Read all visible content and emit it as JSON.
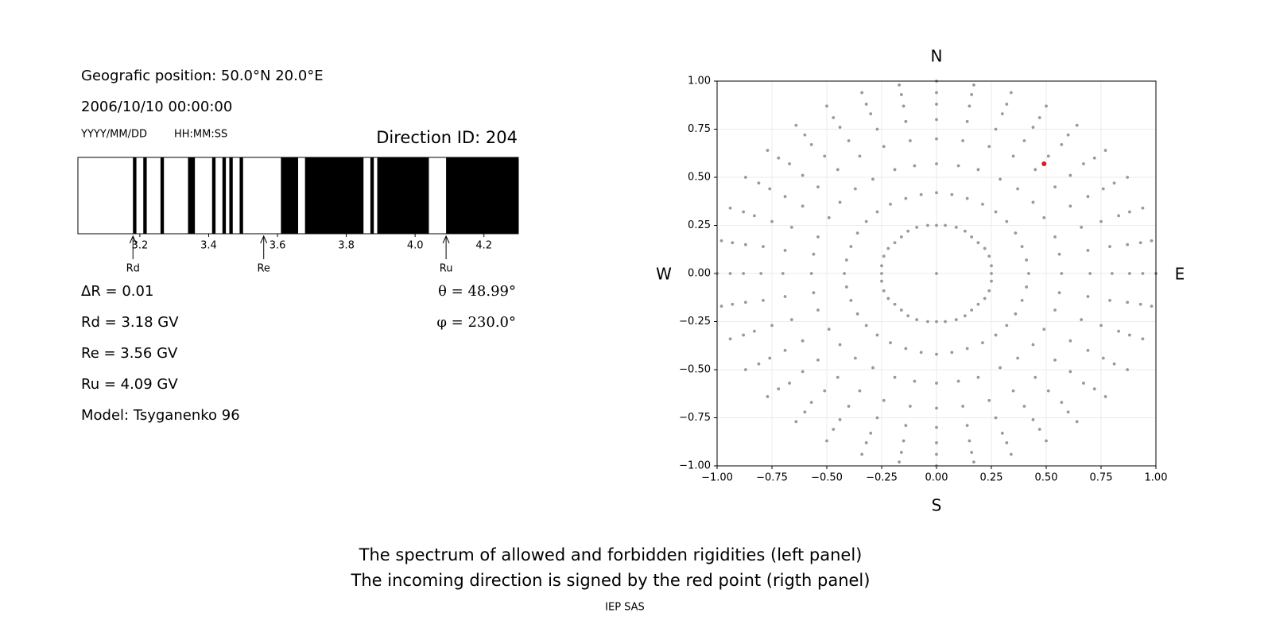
{
  "info": {
    "position": "Geografic position: 50.0°N 20.0°E",
    "datetime": "2006/10/10 00:00:00",
    "date_format": "YYYY/MM/DD",
    "time_format": "HH:MM:SS",
    "direction_id": "Direction ID: 204",
    "delta_r": "ΔR = 0.01",
    "rd": "Rd = 3.18 GV",
    "re": "Re = 3.56 GV",
    "ru": "Ru = 4.09 GV",
    "model": "Model: Tsyganenko 96",
    "theta": "θ = 48.99°",
    "phi": "φ = 230.0°"
  },
  "chart_data": [
    {
      "type": "spectrum",
      "color": "#000000",
      "bands": [
        [
          3.18,
          3.19
        ],
        [
          3.21,
          3.22
        ],
        [
          3.26,
          3.27
        ],
        [
          3.34,
          3.36
        ],
        [
          3.41,
          3.42
        ],
        [
          3.44,
          3.45
        ],
        [
          3.46,
          3.47
        ],
        [
          3.49,
          3.5
        ],
        [
          3.61,
          3.66
        ],
        [
          3.68,
          3.85
        ],
        [
          3.87,
          3.88
        ],
        [
          3.89,
          4.04
        ],
        [
          4.09,
          4.3
        ]
      ],
      "xlim": [
        3.02,
        4.3
      ],
      "xticks": [
        3.2,
        3.4,
        3.6,
        3.8,
        {
          "value": 4,
          "label": "4.0"
        },
        4.2
      ],
      "markers": [
        {
          "label": "Rd",
          "value": 3.18
        },
        {
          "label": "Re",
          "value": 3.56
        },
        {
          "label": "Ru",
          "value": 4.09
        }
      ]
    },
    {
      "type": "scatter",
      "grid": true,
      "directions": {
        "top": "N",
        "bottom": "S",
        "left": "W",
        "right": "E"
      },
      "xlim": [
        -1,
        1
      ],
      "ylim": [
        -1,
        1
      ],
      "xticks": [
        {
          "value": -1,
          "label": "−1.00"
        },
        {
          "value": -0.75,
          "label": "−0.75"
        },
        {
          "value": -0.5,
          "label": "−0.50"
        },
        {
          "value": -0.25,
          "label": "−0.25"
        },
        {
          "value": 0,
          "label": "0.00"
        },
        {
          "value": 0.25,
          "label": "0.25"
        },
        {
          "value": 0.5,
          "label": "0.50"
        },
        {
          "value": 0.75,
          "label": "0.75"
        },
        {
          "value": 1,
          "label": "1.00"
        }
      ],
      "yticks": [
        {
          "value": -1,
          "label": "−1.00"
        },
        {
          "value": -0.75,
          "label": "−0.75"
        },
        {
          "value": -0.5,
          "label": "−0.50"
        },
        {
          "value": -0.25,
          "label": "−0.25"
        },
        {
          "value": 0,
          "label": "0.00"
        },
        {
          "value": 0.25,
          "label": "0.25"
        },
        {
          "value": 0.5,
          "label": "0.50"
        },
        {
          "value": 0.75,
          "label": "0.75"
        },
        {
          "value": 1,
          "label": "1.00"
        }
      ],
      "series": [
        {
          "color": "#999999",
          "x": [
            0,
            0.25,
            0.25,
            0.24,
            0.22,
            0.19,
            0.16,
            0.13,
            0.09,
            0.04,
            0,
            -0.04,
            -0.09,
            -0.13,
            -0.16,
            -0.19,
            -0.22,
            -0.24,
            -0.25,
            -0.25,
            -0.25,
            -0.24,
            -0.22,
            -0.19,
            -0.16,
            -0.13,
            -0.09,
            -0.04,
            0,
            0.04,
            0.09,
            0.13,
            0.16,
            0.19,
            0.22,
            0.24,
            0.25,
            0.42,
            0.41,
            0.39,
            0.36,
            0.32,
            0.27,
            0.21,
            0.14,
            0.07,
            0,
            -0.07,
            -0.14,
            -0.21,
            -0.27,
            -0.32,
            -0.36,
            -0.39,
            -0.41,
            -0.42,
            -0.41,
            -0.39,
            -0.36,
            -0.32,
            -0.27,
            -0.21,
            -0.14,
            -0.07,
            0,
            0.07,
            0.14,
            0.21,
            0.27,
            0.32,
            0.36,
            0.39,
            0.41,
            0.57,
            0.56,
            0.54,
            0.49,
            0.44,
            0.37,
            0.29,
            0.19,
            0.1,
            0,
            -0.1,
            -0.19,
            -0.29,
            -0.37,
            -0.44,
            -0.49,
            -0.54,
            -0.56,
            -0.57,
            -0.56,
            -0.54,
            -0.49,
            -0.44,
            -0.37,
            -0.29,
            -0.19,
            -0.1,
            0,
            0.1,
            0.19,
            0.29,
            0.37,
            0.44,
            0.49,
            0.54,
            0.56,
            0.7,
            0.69,
            0.66,
            0.61,
            0.54,
            0.45,
            0.35,
            0.24,
            0.12,
            0,
            -0.12,
            -0.24,
            -0.35,
            -0.45,
            -0.54,
            -0.61,
            -0.66,
            -0.69,
            -0.7,
            -0.69,
            -0.66,
            -0.61,
            -0.54,
            -0.45,
            -0.35,
            -0.24,
            -0.12,
            0,
            0.12,
            0.24,
            0.35,
            0.45,
            0.54,
            0.61,
            0.66,
            0.69,
            0.8,
            0.79,
            0.75,
            0.69,
            0.61,
            0.51,
            0.4,
            0.27,
            0.14,
            0,
            -0.14,
            -0.27,
            -0.4,
            -0.51,
            -0.61,
            -0.69,
            -0.75,
            -0.79,
            -0.8,
            -0.79,
            -0.75,
            -0.69,
            -0.61,
            -0.51,
            -0.4,
            -0.27,
            -0.14,
            0,
            0.14,
            0.27,
            0.4,
            0.51,
            0.61,
            0.69,
            0.75,
            0.79,
            0.88,
            0.87,
            0.83,
            0.76,
            0.67,
            0.57,
            0.44,
            0.3,
            0.15,
            0,
            -0.15,
            -0.3,
            -0.44,
            -0.57,
            -0.67,
            -0.76,
            -0.83,
            -0.87,
            -0.88,
            -0.87,
            -0.83,
            -0.76,
            -0.67,
            -0.57,
            -0.44,
            -0.3,
            -0.15,
            0,
            0.15,
            0.3,
            0.44,
            0.57,
            0.67,
            0.76,
            0.83,
            0.87,
            0.94,
            0.93,
            0.88,
            0.81,
            0.72,
            0.6,
            0.47,
            0.32,
            0.16,
            0,
            -0.16,
            -0.32,
            -0.47,
            -0.6,
            -0.72,
            -0.81,
            -0.88,
            -0.93,
            -0.94,
            -0.93,
            -0.88,
            -0.81,
            -0.72,
            -0.6,
            -0.47,
            -0.32,
            -0.16,
            0,
            0.16,
            0.32,
            0.47,
            0.6,
            0.72,
            0.81,
            0.88,
            0.93,
            1,
            0.98,
            0.94,
            0.87,
            0.77,
            0.64,
            0.5,
            0.34,
            0.17,
            0,
            -0.17,
            -0.34,
            -0.5,
            -0.64,
            -0.77,
            -0.87,
            -0.94,
            -0.98,
            -1,
            -0.98,
            -0.94,
            -0.87,
            -0.77,
            -0.64,
            -0.5,
            -0.34,
            -0.17,
            0,
            0.17,
            0.34,
            0.5,
            0.64,
            0.77,
            0.87,
            0.94,
            0.98
          ],
          "y": [
            0,
            0,
            0.04,
            0.09,
            0.13,
            0.16,
            0.19,
            0.22,
            0.24,
            0.25,
            0.25,
            0.25,
            0.24,
            0.22,
            0.19,
            0.16,
            0.13,
            0.09,
            0.04,
            0,
            -0.04,
            -0.09,
            -0.13,
            -0.16,
            -0.19,
            -0.22,
            -0.24,
            -0.25,
            -0.25,
            -0.25,
            -0.24,
            -0.22,
            -0.19,
            -0.16,
            -0.13,
            -0.09,
            -0.04,
            0,
            0.07,
            0.14,
            0.21,
            0.27,
            0.32,
            0.36,
            0.39,
            0.41,
            0.42,
            0.41,
            0.39,
            0.36,
            0.32,
            0.27,
            0.21,
            0.14,
            0.07,
            0,
            -0.07,
            -0.14,
            -0.21,
            -0.27,
            -0.32,
            -0.36,
            -0.39,
            -0.41,
            -0.42,
            -0.41,
            -0.39,
            -0.36,
            -0.32,
            -0.27,
            -0.21,
            -0.14,
            -0.07,
            0,
            0.1,
            0.19,
            0.29,
            0.37,
            0.44,
            0.49,
            0.54,
            0.56,
            0.57,
            0.56,
            0.54,
            0.49,
            0.44,
            0.37,
            0.29,
            0.19,
            0.1,
            0,
            -0.1,
            -0.19,
            -0.29,
            -0.37,
            -0.44,
            -0.49,
            -0.54,
            -0.56,
            -0.57,
            -0.56,
            -0.54,
            -0.49,
            -0.44,
            -0.37,
            -0.29,
            -0.19,
            -0.1,
            0,
            0.12,
            0.24,
            0.35,
            0.45,
            0.54,
            0.61,
            0.66,
            0.69,
            0.7,
            0.69,
            0.66,
            0.61,
            0.54,
            0.45,
            0.35,
            0.24,
            0.12,
            0,
            -0.12,
            -0.24,
            -0.35,
            -0.45,
            -0.54,
            -0.61,
            -0.66,
            -0.69,
            -0.7,
            -0.69,
            -0.66,
            -0.61,
            -0.54,
            -0.45,
            -0.35,
            -0.24,
            -0.12,
            0,
            0.14,
            0.27,
            0.4,
            0.51,
            0.61,
            0.69,
            0.75,
            0.79,
            0.8,
            0.79,
            0.75,
            0.69,
            0.61,
            0.51,
            0.4,
            0.27,
            0.14,
            0,
            -0.14,
            -0.27,
            -0.4,
            -0.51,
            -0.61,
            -0.69,
            -0.75,
            -0.79,
            -0.8,
            -0.79,
            -0.75,
            -0.69,
            -0.61,
            -0.51,
            -0.4,
            -0.27,
            -0.14,
            0,
            0.15,
            0.3,
            0.44,
            0.57,
            0.67,
            0.76,
            0.83,
            0.87,
            0.88,
            0.87,
            0.83,
            0.76,
            0.67,
            0.57,
            0.44,
            0.3,
            0.15,
            0,
            -0.15,
            -0.3,
            -0.44,
            -0.57,
            -0.67,
            -0.76,
            -0.83,
            -0.87,
            -0.88,
            -0.87,
            -0.83,
            -0.76,
            -0.67,
            -0.57,
            -0.44,
            -0.3,
            -0.15,
            0,
            0.16,
            0.32,
            0.47,
            0.6,
            0.72,
            0.81,
            0.88,
            0.93,
            0.94,
            0.93,
            0.88,
            0.81,
            0.72,
            0.6,
            0.47,
            0.32,
            0.16,
            0,
            -0.16,
            -0.32,
            -0.47,
            -0.6,
            -0.72,
            -0.81,
            -0.88,
            -0.93,
            -0.94,
            -0.93,
            -0.88,
            -0.81,
            -0.72,
            -0.6,
            -0.47,
            -0.32,
            -0.16,
            0,
            0.17,
            0.34,
            0.5,
            0.64,
            0.77,
            0.87,
            0.94,
            0.98,
            1,
            0.98,
            0.94,
            0.87,
            0.77,
            0.64,
            0.5,
            0.34,
            0.17,
            0,
            -0.17,
            -0.34,
            -0.5,
            -0.64,
            -0.77,
            -0.87,
            -0.94,
            -0.98,
            -1,
            -0.98,
            -0.94,
            -0.87,
            -0.77,
            -0.64,
            -0.5,
            -0.34,
            -0.17
          ]
        },
        {
          "color": "#e8141c",
          "x": [
            0.49
          ],
          "y": [
            0.57
          ]
        }
      ]
    }
  ],
  "caption": [
    "The spectrum of allowed and forbidden rigidities (left panel)",
    "The incoming direction is signed by the red point (rigth panel)"
  ],
  "credit": "IEP SAS"
}
